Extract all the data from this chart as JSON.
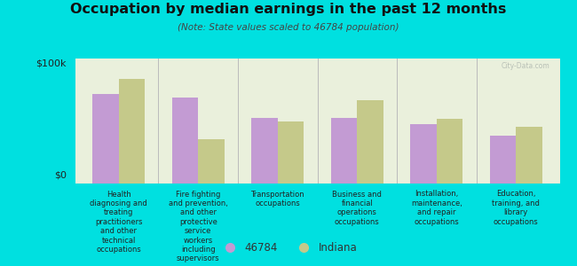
{
  "title": "Occupation by median earnings in the past 12 months",
  "subtitle": "(Note: State values scaled to 46784 population)",
  "background_color": "#00e0e0",
  "plot_bg_color": "#eaf0dc",
  "categories": [
    "Health\ndiagnosing and\ntreating\npractitioners\nand other\ntechnical\noccupations",
    "Fire fighting\nand prevention,\nand other\nprotective\nservice\nworkers\nincluding\nsupervisors",
    "Transportation\noccupations",
    "Business and\nfinancial\noperations\noccupations",
    "Installation,\nmaintenance,\nand repair\noccupations",
    "Education,\ntraining, and\nlibrary\noccupations"
  ],
  "values_46784": [
    75000,
    72000,
    55000,
    55000,
    50000,
    40000
  ],
  "values_indiana": [
    88000,
    37000,
    52000,
    70000,
    54000,
    48000
  ],
  "color_46784": "#c39bd3",
  "color_indiana": "#c5c98a",
  "ylim": [
    0,
    105000
  ],
  "yticks": [
    0,
    100000
  ],
  "ytick_labels": [
    "$0",
    "$100k"
  ],
  "legend_46784": "46784",
  "legend_indiana": "Indiana",
  "watermark": "City-Data.com"
}
